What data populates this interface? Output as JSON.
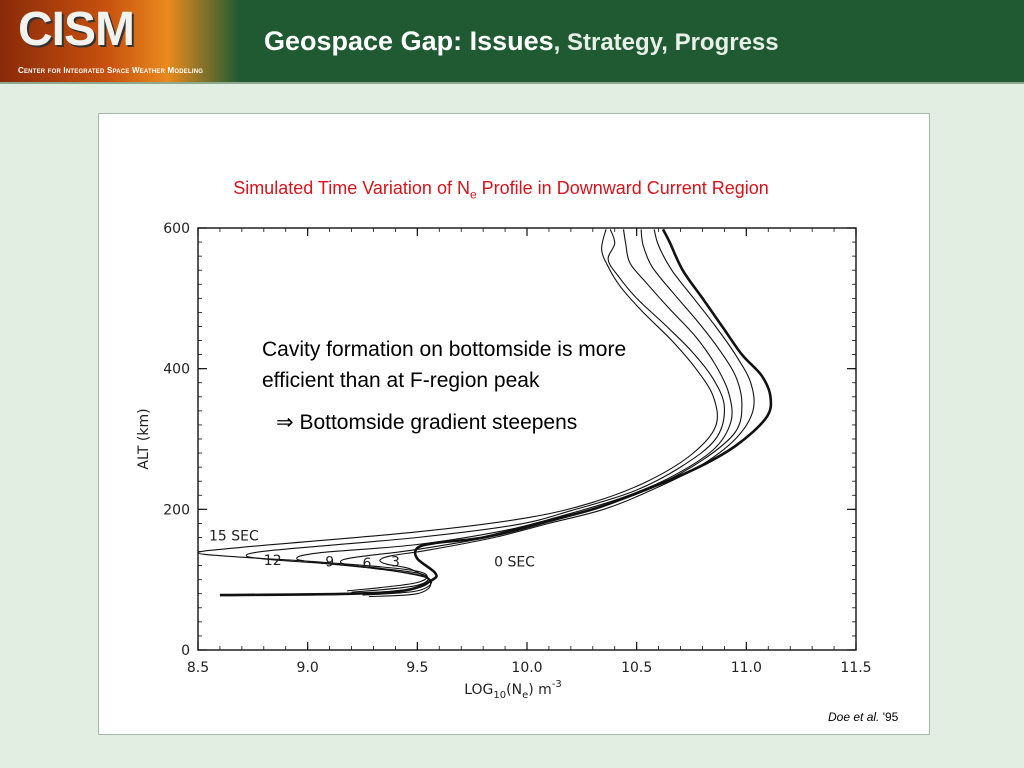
{
  "header": {
    "logo_text": "CISM",
    "logo_subtitle": "Center for Integrated Space Weather Modeling",
    "title_main": "Geospace Gap:  Issues",
    "title_rest": ", Strategy, Progress"
  },
  "chart_data": {
    "type": "line",
    "title_prefix": "Simulated Time Variation of N",
    "title_sub": "e",
    "title_suffix": " Profile in Downward Current Region",
    "xlabel": "LOG10(Ne) m^-3",
    "xlabel_parts": {
      "main": "LOG",
      "sub1": "10",
      "mid": "(N",
      "sub2": "e",
      "end": ") m",
      "sup": "-3"
    },
    "ylabel": "ALT (km)",
    "xlim": [
      8.5,
      11.5
    ],
    "ylim": [
      0,
      600
    ],
    "xticks": [
      "8.5",
      "9.0",
      "9.5",
      "10.0",
      "10.5",
      "11.0",
      "11.5"
    ],
    "yticks": [
      "0",
      "200",
      "400",
      "600"
    ],
    "series": [
      {
        "name": "0 SEC",
        "bold": true,
        "points": [
          [
            8.6,
            78
          ],
          [
            9.2,
            80
          ],
          [
            9.45,
            85
          ],
          [
            9.57,
            100
          ],
          [
            9.58,
            110
          ],
          [
            9.5,
            130
          ],
          [
            9.5,
            145
          ],
          [
            9.58,
            152
          ],
          [
            9.8,
            160
          ],
          [
            10.05,
            180
          ],
          [
            10.3,
            200
          ],
          [
            10.5,
            223
          ],
          [
            10.75,
            255
          ],
          [
            10.95,
            290
          ],
          [
            11.09,
            330
          ],
          [
            11.11,
            360
          ],
          [
            11.07,
            390
          ],
          [
            10.98,
            420
          ],
          [
            10.89,
            460
          ],
          [
            10.8,
            500
          ],
          [
            10.71,
            540
          ],
          [
            10.65,
            580
          ],
          [
            10.62,
            598
          ]
        ]
      },
      {
        "name": "3",
        "bold": false,
        "points": [
          [
            9.28,
            76
          ],
          [
            9.5,
            80
          ],
          [
            9.56,
            96
          ],
          [
            9.47,
            115
          ],
          [
            9.36,
            122
          ],
          [
            9.33,
            128
          ],
          [
            9.38,
            134
          ],
          [
            9.55,
            142
          ],
          [
            9.85,
            160
          ],
          [
            10.1,
            180
          ],
          [
            10.35,
            200
          ],
          [
            10.55,
            225
          ],
          [
            10.78,
            260
          ],
          [
            10.95,
            300
          ],
          [
            11.03,
            340
          ],
          [
            11.02,
            380
          ],
          [
            10.95,
            420
          ],
          [
            10.86,
            460
          ],
          [
            10.76,
            500
          ],
          [
            10.66,
            540
          ],
          [
            10.6,
            575
          ],
          [
            10.58,
            598
          ]
        ]
      },
      {
        "name": "6",
        "bold": false,
        "points": [
          [
            9.25,
            78
          ],
          [
            9.5,
            84
          ],
          [
            9.56,
            100
          ],
          [
            9.4,
            112
          ],
          [
            9.2,
            120
          ],
          [
            9.15,
            126
          ],
          [
            9.22,
            132
          ],
          [
            9.5,
            143
          ],
          [
            9.85,
            162
          ],
          [
            10.1,
            182
          ],
          [
            10.35,
            205
          ],
          [
            10.58,
            232
          ],
          [
            10.8,
            270
          ],
          [
            10.95,
            310
          ],
          [
            10.98,
            350
          ],
          [
            10.95,
            390
          ],
          [
            10.87,
            430
          ],
          [
            10.77,
            470
          ],
          [
            10.66,
            510
          ],
          [
            10.57,
            545
          ],
          [
            10.53,
            575
          ],
          [
            10.52,
            598
          ]
        ]
      },
      {
        "name": "9",
        "bold": false,
        "points": [
          [
            9.22,
            80
          ],
          [
            9.5,
            88
          ],
          [
            9.54,
            104
          ],
          [
            9.3,
            116
          ],
          [
            9.05,
            124
          ],
          [
            8.95,
            130
          ],
          [
            9.05,
            138
          ],
          [
            9.5,
            150
          ],
          [
            9.9,
            170
          ],
          [
            10.15,
            190
          ],
          [
            10.42,
            215
          ],
          [
            10.65,
            245
          ],
          [
            10.85,
            285
          ],
          [
            10.93,
            325
          ],
          [
            10.92,
            365
          ],
          [
            10.86,
            405
          ],
          [
            10.77,
            445
          ],
          [
            10.65,
            485
          ],
          [
            10.55,
            520
          ],
          [
            10.47,
            550
          ],
          [
            10.45,
            578
          ],
          [
            10.44,
            598
          ]
        ]
      },
      {
        "name": "12",
        "bold": false,
        "points": [
          [
            9.2,
            82
          ],
          [
            9.5,
            92
          ],
          [
            9.52,
            108
          ],
          [
            9.2,
            120
          ],
          [
            8.85,
            128
          ],
          [
            8.72,
            134
          ],
          [
            8.85,
            142
          ],
          [
            9.5,
            160
          ],
          [
            9.95,
            178
          ],
          [
            10.2,
            198
          ],
          [
            10.48,
            225
          ],
          [
            10.7,
            260
          ],
          [
            10.86,
            300
          ],
          [
            10.9,
            345
          ],
          [
            10.85,
            385
          ],
          [
            10.75,
            425
          ],
          [
            10.62,
            465
          ],
          [
            10.5,
            500
          ],
          [
            10.42,
            530
          ],
          [
            10.37,
            555
          ],
          [
            10.4,
            578
          ],
          [
            10.38,
            598
          ]
        ]
      },
      {
        "name": "15 SEC",
        "bold": false,
        "points": [
          [
            9.18,
            84
          ],
          [
            9.5,
            96
          ],
          [
            9.5,
            112
          ],
          [
            9.1,
            124
          ],
          [
            8.7,
            132
          ],
          [
            8.5,
            138
          ],
          [
            8.7,
            146
          ],
          [
            9.5,
            168
          ],
          [
            10.0,
            188
          ],
          [
            10.3,
            210
          ],
          [
            10.55,
            240
          ],
          [
            10.75,
            278
          ],
          [
            10.86,
            318
          ],
          [
            10.85,
            360
          ],
          [
            10.77,
            400
          ],
          [
            10.66,
            440
          ],
          [
            10.53,
            480
          ],
          [
            10.43,
            515
          ],
          [
            10.37,
            545
          ],
          [
            10.34,
            570
          ],
          [
            10.36,
            598
          ]
        ]
      }
    ],
    "curve_labels": [
      {
        "text": "15 SEC",
        "x": 8.55,
        "y": 163
      },
      {
        "text": "12",
        "x": 8.8,
        "y": 128
      },
      {
        "text": "9",
        "x": 9.08,
        "y": 126
      },
      {
        "text": "6",
        "x": 9.25,
        "y": 124
      },
      {
        "text": "3",
        "x": 9.38,
        "y": 126
      },
      {
        "text": "0 SEC",
        "x": 9.85,
        "y": 126
      }
    ]
  },
  "annotations": {
    "line1": "Cavity formation on bottomside is more",
    "line2": "efficient than at F-region peak",
    "arrow": "⇒",
    "result": " Bottomside gradient steepens"
  },
  "credit": {
    "authors": "Doe et al.",
    "year": " '95"
  }
}
